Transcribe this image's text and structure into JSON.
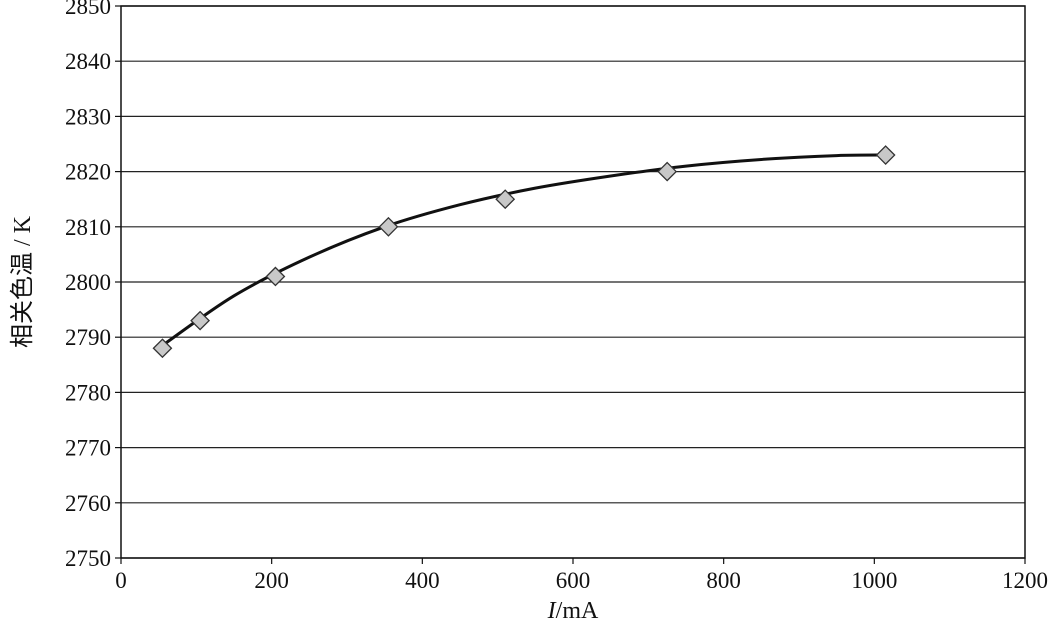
{
  "chart_data": {
    "type": "scatter",
    "title": "",
    "xlabel_var": "I",
    "xlabel_unit": "/mA",
    "ylabel": "相关色温 / K",
    "xlim": [
      0,
      1200
    ],
    "ylim": [
      2750,
      2850
    ],
    "xticks": [
      "0",
      "200",
      "400",
      "600",
      "800",
      "1000",
      "1200"
    ],
    "yticks": [
      "2750",
      "2760",
      "2770",
      "2780",
      "2790",
      "2800",
      "2810",
      "2820",
      "2830",
      "2840",
      "2850"
    ],
    "grid": "horizontal",
    "legend": "none",
    "series": [
      {
        "marker": "diamond",
        "x": [
          55,
          105,
          205,
          355,
          510,
          725,
          1015
        ],
        "y": [
          2788,
          2793,
          2801,
          2810,
          2815,
          2820,
          2823
        ]
      }
    ],
    "trendline": {
      "x": [
        55,
        150,
        250,
        350,
        450,
        550,
        650,
        750,
        850,
        950,
        1020
      ],
      "y": [
        2788.5,
        2797.5,
        2804.5,
        2810,
        2814,
        2817,
        2819.2,
        2821,
        2822.2,
        2822.9,
        2823
      ]
    },
    "colors": {
      "marker_fill": "#c8c8c8",
      "marker_stroke": "#333333",
      "line": "#111111",
      "grid": "#222222"
    }
  }
}
